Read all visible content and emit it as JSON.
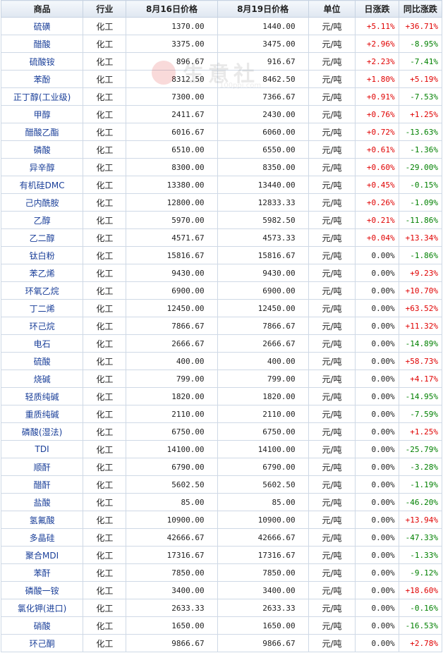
{
  "header": {
    "product": "商品",
    "industry": "行业",
    "price_prev": "8月16日价格",
    "price_curr": "8月19日价格",
    "unit": "单位",
    "daily_change": "日涨跌",
    "yoy_change": "同比涨跌"
  },
  "watermark": {
    "text": "生意社",
    "url": "100ppi.com"
  },
  "colors": {
    "up": "#e00000",
    "down": "#008000",
    "name": "#1a3f99",
    "header_bg": "#dfe7f1"
  },
  "rows": [
    {
      "name": "硫磺",
      "industry": "化工",
      "p1": "1370.00",
      "p2": "1440.00",
      "unit": "元/吨",
      "day": "+5.11%",
      "yoy": "+36.71%"
    },
    {
      "name": "醋酸",
      "industry": "化工",
      "p1": "3375.00",
      "p2": "3475.00",
      "unit": "元/吨",
      "day": "+2.96%",
      "yoy": "-8.95%"
    },
    {
      "name": "硫酸铵",
      "industry": "化工",
      "p1": "896.67",
      "p2": "916.67",
      "unit": "元/吨",
      "day": "+2.23%",
      "yoy": "-7.41%"
    },
    {
      "name": "苯酚",
      "industry": "化工",
      "p1": "8312.50",
      "p2": "8462.50",
      "unit": "元/吨",
      "day": "+1.80%",
      "yoy": "+5.19%"
    },
    {
      "name": "正丁醇(工业级)",
      "industry": "化工",
      "p1": "7300.00",
      "p2": "7366.67",
      "unit": "元/吨",
      "day": "+0.91%",
      "yoy": "-7.53%"
    },
    {
      "name": "甲醇",
      "industry": "化工",
      "p1": "2411.67",
      "p2": "2430.00",
      "unit": "元/吨",
      "day": "+0.76%",
      "yoy": "+1.25%"
    },
    {
      "name": "醋酸乙酯",
      "industry": "化工",
      "p1": "6016.67",
      "p2": "6060.00",
      "unit": "元/吨",
      "day": "+0.72%",
      "yoy": "-13.63%"
    },
    {
      "name": "磷酸",
      "industry": "化工",
      "p1": "6510.00",
      "p2": "6550.00",
      "unit": "元/吨",
      "day": "+0.61%",
      "yoy": "-1.36%"
    },
    {
      "name": "异辛醇",
      "industry": "化工",
      "p1": "8300.00",
      "p2": "8350.00",
      "unit": "元/吨",
      "day": "+0.60%",
      "yoy": "-29.00%"
    },
    {
      "name": "有机硅DMC",
      "industry": "化工",
      "p1": "13380.00",
      "p2": "13440.00",
      "unit": "元/吨",
      "day": "+0.45%",
      "yoy": "-0.15%"
    },
    {
      "name": "己内酰胺",
      "industry": "化工",
      "p1": "12800.00",
      "p2": "12833.33",
      "unit": "元/吨",
      "day": "+0.26%",
      "yoy": "-1.09%"
    },
    {
      "name": "乙醇",
      "industry": "化工",
      "p1": "5970.00",
      "p2": "5982.50",
      "unit": "元/吨",
      "day": "+0.21%",
      "yoy": "-11.86%"
    },
    {
      "name": "乙二醇",
      "industry": "化工",
      "p1": "4571.67",
      "p2": "4573.33",
      "unit": "元/吨",
      "day": "+0.04%",
      "yoy": "+13.34%"
    },
    {
      "name": "钛白粉",
      "industry": "化工",
      "p1": "15816.67",
      "p2": "15816.67",
      "unit": "元/吨",
      "day": "0.00%",
      "yoy": "-1.86%"
    },
    {
      "name": "苯乙烯",
      "industry": "化工",
      "p1": "9430.00",
      "p2": "9430.00",
      "unit": "元/吨",
      "day": "0.00%",
      "yoy": "+9.23%"
    },
    {
      "name": "环氧乙烷",
      "industry": "化工",
      "p1": "6900.00",
      "p2": "6900.00",
      "unit": "元/吨",
      "day": "0.00%",
      "yoy": "+10.70%"
    },
    {
      "name": "丁二烯",
      "industry": "化工",
      "p1": "12450.00",
      "p2": "12450.00",
      "unit": "元/吨",
      "day": "0.00%",
      "yoy": "+63.52%"
    },
    {
      "name": "环己烷",
      "industry": "化工",
      "p1": "7866.67",
      "p2": "7866.67",
      "unit": "元/吨",
      "day": "0.00%",
      "yoy": "+11.32%"
    },
    {
      "name": "电石",
      "industry": "化工",
      "p1": "2666.67",
      "p2": "2666.67",
      "unit": "元/吨",
      "day": "0.00%",
      "yoy": "-14.89%"
    },
    {
      "name": "硫酸",
      "industry": "化工",
      "p1": "400.00",
      "p2": "400.00",
      "unit": "元/吨",
      "day": "0.00%",
      "yoy": "+58.73%"
    },
    {
      "name": "烧碱",
      "industry": "化工",
      "p1": "799.00",
      "p2": "799.00",
      "unit": "元/吨",
      "day": "0.00%",
      "yoy": "+4.17%"
    },
    {
      "name": "轻质纯碱",
      "industry": "化工",
      "p1": "1820.00",
      "p2": "1820.00",
      "unit": "元/吨",
      "day": "0.00%",
      "yoy": "-14.95%"
    },
    {
      "name": "重质纯碱",
      "industry": "化工",
      "p1": "2110.00",
      "p2": "2110.00",
      "unit": "元/吨",
      "day": "0.00%",
      "yoy": "-7.59%"
    },
    {
      "name": "磷酸(湿法)",
      "industry": "化工",
      "p1": "6750.00",
      "p2": "6750.00",
      "unit": "元/吨",
      "day": "0.00%",
      "yoy": "+1.25%"
    },
    {
      "name": "TDI",
      "industry": "化工",
      "p1": "14100.00",
      "p2": "14100.00",
      "unit": "元/吨",
      "day": "0.00%",
      "yoy": "-25.79%"
    },
    {
      "name": "顺酐",
      "industry": "化工",
      "p1": "6790.00",
      "p2": "6790.00",
      "unit": "元/吨",
      "day": "0.00%",
      "yoy": "-3.28%"
    },
    {
      "name": "醋酐",
      "industry": "化工",
      "p1": "5602.50",
      "p2": "5602.50",
      "unit": "元/吨",
      "day": "0.00%",
      "yoy": "-1.19%"
    },
    {
      "name": "盐酸",
      "industry": "化工",
      "p1": "85.00",
      "p2": "85.00",
      "unit": "元/吨",
      "day": "0.00%",
      "yoy": "-46.20%"
    },
    {
      "name": "氢氟酸",
      "industry": "化工",
      "p1": "10900.00",
      "p2": "10900.00",
      "unit": "元/吨",
      "day": "0.00%",
      "yoy": "+13.94%"
    },
    {
      "name": "多晶硅",
      "industry": "化工",
      "p1": "42666.67",
      "p2": "42666.67",
      "unit": "元/吨",
      "day": "0.00%",
      "yoy": "-47.33%"
    },
    {
      "name": "聚合MDI",
      "industry": "化工",
      "p1": "17316.67",
      "p2": "17316.67",
      "unit": "元/吨",
      "day": "0.00%",
      "yoy": "-1.33%"
    },
    {
      "name": "苯酐",
      "industry": "化工",
      "p1": "7850.00",
      "p2": "7850.00",
      "unit": "元/吨",
      "day": "0.00%",
      "yoy": "-9.12%"
    },
    {
      "name": "磷酸一铵",
      "industry": "化工",
      "p1": "3400.00",
      "p2": "3400.00",
      "unit": "元/吨",
      "day": "0.00%",
      "yoy": "+18.60%"
    },
    {
      "name": "氯化钾(进口)",
      "industry": "化工",
      "p1": "2633.33",
      "p2": "2633.33",
      "unit": "元/吨",
      "day": "0.00%",
      "yoy": "-0.16%"
    },
    {
      "name": "硝酸",
      "industry": "化工",
      "p1": "1650.00",
      "p2": "1650.00",
      "unit": "元/吨",
      "day": "0.00%",
      "yoy": "-16.53%"
    },
    {
      "name": "环己酮",
      "industry": "化工",
      "p1": "9866.67",
      "p2": "9866.67",
      "unit": "元/吨",
      "day": "0.00%",
      "yoy": "+2.78%"
    }
  ]
}
